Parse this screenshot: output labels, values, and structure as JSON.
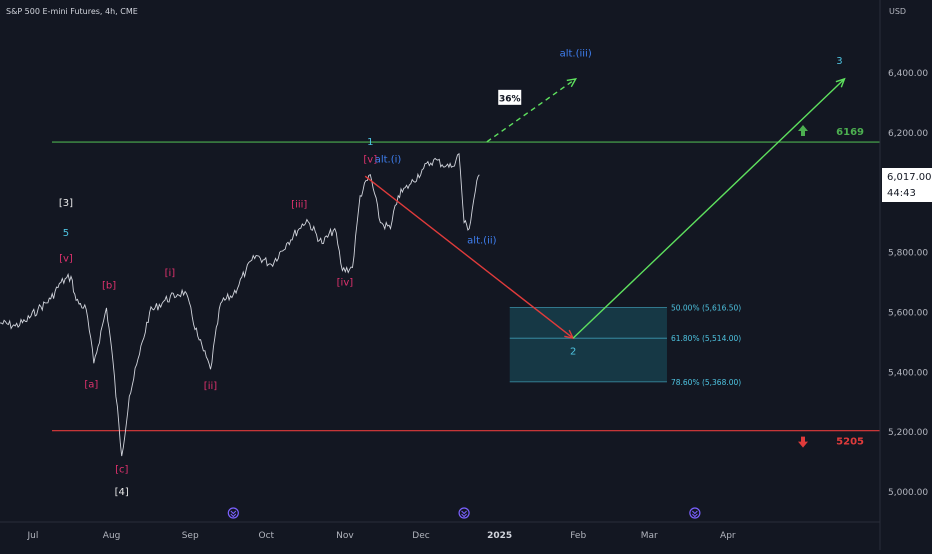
{
  "header": {
    "title": "S&P 500 E-mini Futures, 4h, CME",
    "currency": "USD"
  },
  "price_tag": {
    "price": "6,017.00",
    "countdown": "44:43"
  },
  "chart_data": {
    "type": "line",
    "title": "S&P 500 E-mini Futures, 4h, CME",
    "y_axis": {
      "ticks": [
        5000,
        5200,
        5400,
        5600,
        5800,
        6000,
        6200,
        6400
      ],
      "tick_labels": [
        "5,000.00",
        "5,200.00",
        "5,400.00",
        "5,600.00",
        "5,800.00",
        "6,000.00",
        "6,200.00",
        "6,400.00"
      ],
      "ylim": [
        4900,
        6570
      ]
    },
    "x_axis": {
      "tick_labels": [
        "Jul",
        "Aug",
        "Sep",
        "Oct",
        "Nov",
        "Dec",
        "2025",
        "Feb",
        "Mar",
        "Apr"
      ],
      "tick_dates": [
        "2024-07-01",
        "2024-08-01",
        "2024-09-01",
        "2024-10-01",
        "2024-11-01",
        "2024-12-01",
        "2025-01-01",
        "2025-02-01",
        "2025-03-01",
        "2025-04-01"
      ],
      "xlim": [
        "2024-06-18",
        "2025-05-31"
      ]
    },
    "price_series": {
      "name": "",
      "points": [
        [
          "2024-06-18",
          5565
        ],
        [
          "2024-06-24",
          5555
        ],
        [
          "2024-06-28",
          5570
        ],
        [
          "2024-07-03",
          5610
        ],
        [
          "2024-07-08",
          5645
        ],
        [
          "2024-07-12",
          5700
        ],
        [
          "2024-07-16",
          5720
        ],
        [
          "2024-07-18",
          5640
        ],
        [
          "2024-07-22",
          5610
        ],
        [
          "2024-07-25",
          5430
        ],
        [
          "2024-07-30",
          5615
        ],
        [
          "2024-08-01",
          5480
        ],
        [
          "2024-08-05",
          5120
        ],
        [
          "2024-08-08",
          5320
        ],
        [
          "2024-08-12",
          5460
        ],
        [
          "2024-08-16",
          5600
        ],
        [
          "2024-08-22",
          5640
        ],
        [
          "2024-08-27",
          5660
        ],
        [
          "2024-08-30",
          5670
        ],
        [
          "2024-09-04",
          5520
        ],
        [
          "2024-09-09",
          5410
        ],
        [
          "2024-09-13",
          5630
        ],
        [
          "2024-09-18",
          5660
        ],
        [
          "2024-09-23",
          5740
        ],
        [
          "2024-09-27",
          5790
        ],
        [
          "2024-10-03",
          5760
        ],
        [
          "2024-10-09",
          5830
        ],
        [
          "2024-10-14",
          5880
        ],
        [
          "2024-10-17",
          5910
        ],
        [
          "2024-10-23",
          5830
        ],
        [
          "2024-10-28",
          5880
        ],
        [
          "2024-10-31",
          5740
        ],
        [
          "2024-11-04",
          5750
        ],
        [
          "2024-11-07",
          5990
        ],
        [
          "2024-11-11",
          6060
        ],
        [
          "2024-11-15",
          5900
        ],
        [
          "2024-11-19",
          5880
        ],
        [
          "2024-11-22",
          5990
        ],
        [
          "2024-11-27",
          6030
        ],
        [
          "2024-12-02",
          6080
        ],
        [
          "2024-12-06",
          6110
        ],
        [
          "2024-12-11",
          6090
        ],
        [
          "2024-12-13",
          6085
        ],
        [
          "2024-12-16",
          6130
        ],
        [
          "2024-12-18",
          5900
        ],
        [
          "2024-12-20",
          5880
        ],
        [
          "2024-12-23",
          6040
        ],
        [
          "2024-12-24",
          6060
        ]
      ]
    },
    "horizontal_levels": [
      {
        "value": 6169,
        "label": "6169",
        "color": "#4caf50",
        "direction": "up"
      },
      {
        "value": 5205,
        "label": "5205",
        "color": "#e03b3b",
        "direction": "down"
      }
    ],
    "fib_zone": {
      "date_start": "2025-01-05",
      "date_end": "2025-03-08",
      "top": 5616.5,
      "bottom": 5368,
      "levels": [
        {
          "value": 5616.5,
          "label": "50.00% (5,616.50)"
        },
        {
          "value": 5514,
          "label": "61.80% (5,514.00)"
        },
        {
          "value": 5368,
          "label": "78.60% (5,368.00)"
        }
      ],
      "color": "#1f8fa3"
    },
    "projections": [
      {
        "from": [
          "2024-11-09",
          6055
        ],
        "to": [
          "2025-01-30",
          5514
        ],
        "color": "#e03b3b",
        "style": "solid"
      },
      {
        "from": [
          "2025-01-30",
          5514
        ],
        "to": [
          "2025-05-17",
          6380
        ],
        "color": "#5ee05e",
        "style": "solid"
      },
      {
        "from": [
          "2024-12-27",
          6170
        ],
        "to": [
          "2025-01-31",
          6380
        ],
        "color": "#5ee05e",
        "style": "dashed"
      }
    ],
    "annotations": [
      {
        "text": "[3]",
        "date": "2024-07-14",
        "price": 5955,
        "color": "#e8e8e8",
        "boxed": false
      },
      {
        "text": "5",
        "date": "2024-07-14",
        "price": 5855,
        "color": "#4ec3e0",
        "boxed": false
      },
      {
        "text": "[v]",
        "date": "2024-07-14",
        "price": 5770,
        "color": "#e0326e",
        "boxed": false
      },
      {
        "text": "[a]",
        "date": "2024-07-24",
        "price": 5350,
        "color": "#e0326e",
        "boxed": false
      },
      {
        "text": "[b]",
        "date": "2024-07-31",
        "price": 5680,
        "color": "#e0326e",
        "boxed": false
      },
      {
        "text": "[c]",
        "date": "2024-08-05",
        "price": 5065,
        "color": "#e0326e",
        "boxed": false
      },
      {
        "text": "[4]",
        "date": "2024-08-05",
        "price": 4990,
        "color": "#e8e8e8",
        "boxed": false
      },
      {
        "text": "[i]",
        "date": "2024-08-24",
        "price": 5722,
        "color": "#e0326e",
        "boxed": false
      },
      {
        "text": "[ii]",
        "date": "2024-09-09",
        "price": 5345,
        "color": "#e0326e",
        "boxed": false
      },
      {
        "text": "[iii]",
        "date": "2024-10-14",
        "price": 5950,
        "color": "#e0326e",
        "boxed": false
      },
      {
        "text": "[iv]",
        "date": "2024-11-01",
        "price": 5690,
        "color": "#e0326e",
        "boxed": false
      },
      {
        "text": "1",
        "date": "2024-11-11",
        "price": 6160,
        "color": "#4ec3e0",
        "boxed": false
      },
      {
        "text": "[v]",
        "date": "2024-11-11",
        "price": 6100,
        "color": "#e0326e",
        "boxed": false
      },
      {
        "text": "alt.(i)",
        "date": "2024-11-18",
        "price": 6100,
        "color": "#3f7ff0",
        "boxed": false
      },
      {
        "text": "alt.(ii)",
        "date": "2024-12-25",
        "price": 5830,
        "color": "#3f7ff0",
        "boxed": false
      },
      {
        "text": "alt.(iii)",
        "date": "2025-01-31",
        "price": 6455,
        "color": "#3f7ff0",
        "boxed": false
      },
      {
        "text": "36%",
        "date": "2025-01-05",
        "price": 6315,
        "color": "#131722",
        "boxed": true
      },
      {
        "text": "2",
        "date": "2025-01-30",
        "price": 5460,
        "color": "#4ec3e0",
        "boxed": false
      },
      {
        "text": "3",
        "date": "2025-05-15",
        "price": 6430,
        "color": "#4ec3e0",
        "boxed": false
      }
    ],
    "event_markers": [
      "2024-09-18",
      "2024-12-18",
      "2025-03-19"
    ],
    "grid": false,
    "legend": "none"
  },
  "colors": {
    "background": "#131722",
    "price_line": "#d1d4dc",
    "axis_text": "#b2b5be",
    "price_tag_bg": "#ffffff",
    "price_tag_text": "#131722"
  }
}
